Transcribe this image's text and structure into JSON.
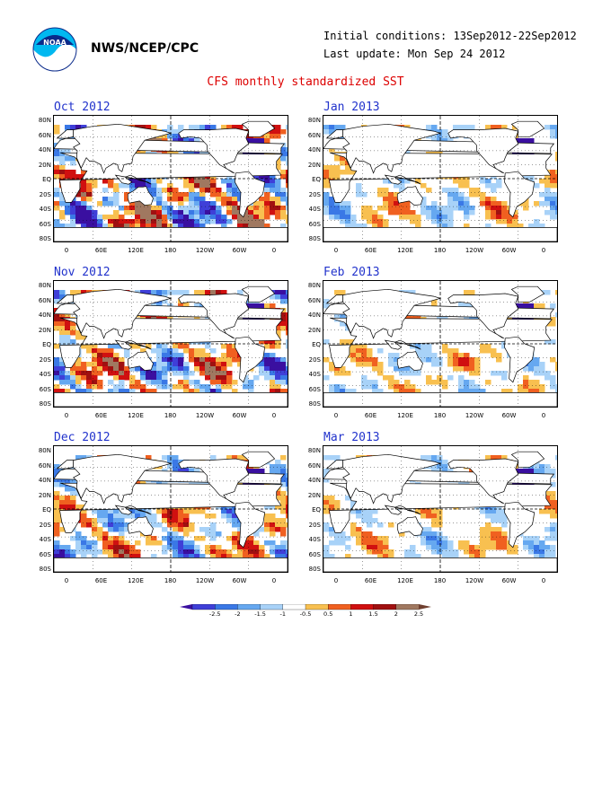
{
  "header": {
    "agency": "NWS/NCEP/CPC",
    "initial_conditions": "Initial conditions: 13Sep2012-22Sep2012",
    "last_update": "Last update: Mon Sep 24 2012",
    "title": "CFS monthly standardized SST",
    "logo_text": "NOAA",
    "logo_icon": "noaa-logo-icon"
  },
  "panels": [
    {
      "id": "oct",
      "title": "Oct 2012",
      "intensity": 1.0
    },
    {
      "id": "jan",
      "title": "Jan 2013",
      "intensity": 0.45
    },
    {
      "id": "nov",
      "title": "Nov 2012",
      "intensity": 0.85
    },
    {
      "id": "feb",
      "title": "Feb 2013",
      "intensity": 0.4
    },
    {
      "id": "dec",
      "title": "Dec 2012",
      "intensity": 0.65
    },
    {
      "id": "mar",
      "title": "Mar 2013",
      "intensity": 0.4
    }
  ],
  "axes": {
    "lat_labels": [
      "80N",
      "60N",
      "40N",
      "20N",
      "EQ",
      "20S",
      "40S",
      "60S",
      "80S"
    ],
    "lon_labels": [
      "0",
      "60E",
      "120E",
      "180",
      "120W",
      "60W",
      "0"
    ]
  },
  "colorbar": {
    "labels": [
      "-2.5",
      "-2",
      "-1.5",
      "-1",
      "-0.5",
      "0.5",
      "1",
      "1.5",
      "2",
      "2.5"
    ],
    "colors": [
      "#3a0fa0",
      "#3f3fd8",
      "#3a78e6",
      "#66a8f0",
      "#a8d2f8",
      "#ffffff",
      "#f8c050",
      "#f06020",
      "#d01010",
      "#a01010",
      "#a07860",
      "#704030"
    ]
  }
}
